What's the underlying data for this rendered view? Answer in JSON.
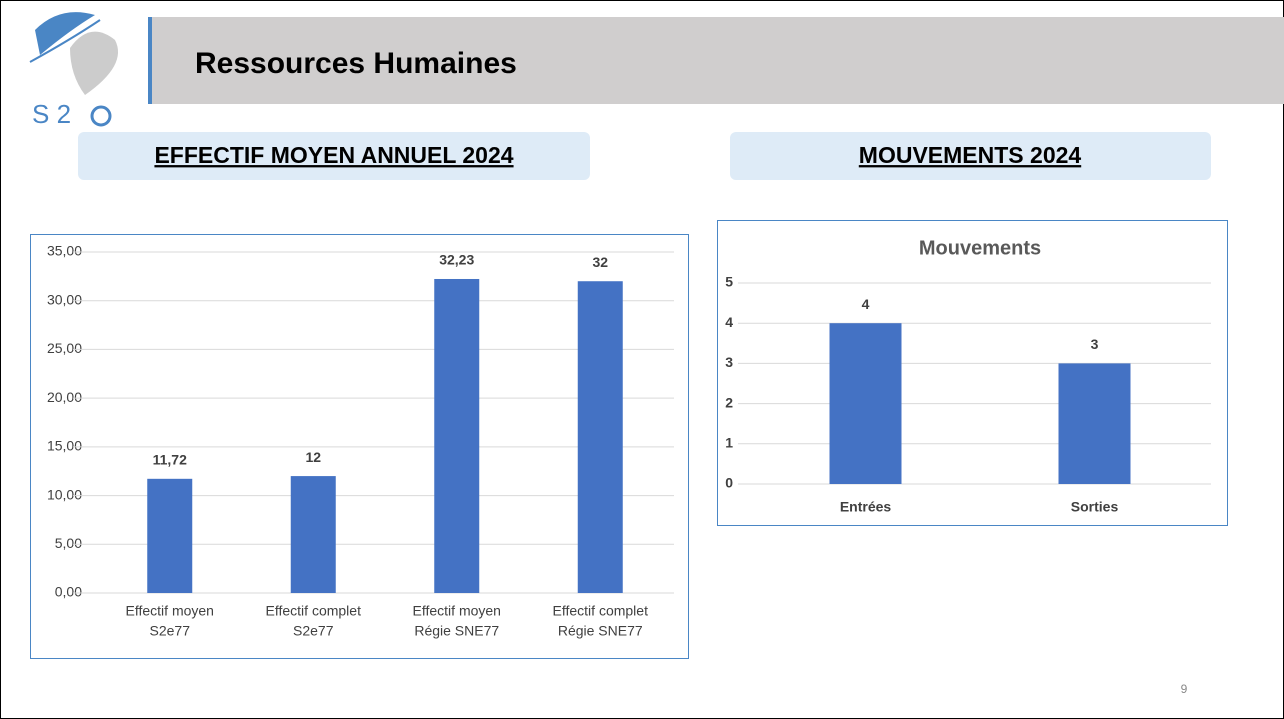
{
  "header": {
    "title": "Ressources Humaines",
    "logo_text": "S 2",
    "sections": [
      "EFFECTIF MOYEN ANNUEL 2024",
      "MOUVEMENTS 2024"
    ],
    "page_number": "9"
  },
  "chart_data": [
    {
      "type": "bar",
      "categories": [
        [
          "Effectif moyen",
          "S2e77"
        ],
        [
          "Effectif complet",
          "S2e77"
        ],
        [
          "Effectif moyen",
          "Régie SNE77"
        ],
        [
          "Effectif complet",
          "Régie SNE77"
        ]
      ],
      "values": [
        11.72,
        12,
        32.23,
        32
      ],
      "value_labels": [
        "11,72",
        "12",
        "32,23",
        "32"
      ],
      "color": "#4472c4",
      "ylim": [
        0,
        35
      ],
      "yticks": [
        {
          "value": 0,
          "label": "0,00"
        },
        {
          "value": 5,
          "label": "5,00"
        },
        {
          "value": 10,
          "label": "10,00"
        },
        {
          "value": 15,
          "label": "15,00"
        },
        {
          "value": 20,
          "label": "20,00"
        },
        {
          "value": 25,
          "label": "25,00"
        },
        {
          "value": 30,
          "label": "30,00"
        },
        {
          "value": 35,
          "label": "35,00"
        }
      ],
      "grid": true
    },
    {
      "type": "bar",
      "title": "Mouvements",
      "categories": [
        [
          "Entrées"
        ],
        [
          "Sorties"
        ]
      ],
      "values": [
        4,
        3
      ],
      "color": "#4472c4",
      "ylim": [
        0,
        5
      ],
      "yticks": [
        0,
        1,
        2,
        3,
        4,
        5
      ],
      "grid": true
    }
  ]
}
